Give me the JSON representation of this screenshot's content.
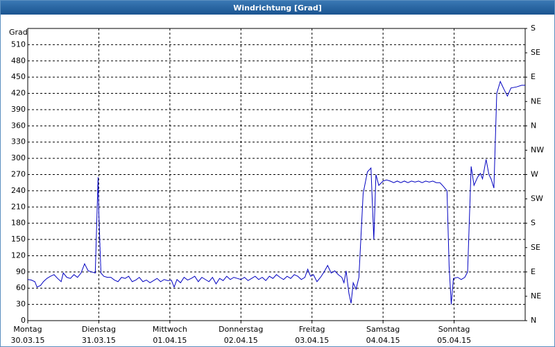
{
  "chart_data": {
    "type": "line",
    "title": "Windrichtung [Grad]",
    "y_label": "Grad",
    "xlim": [
      0,
      7
    ],
    "xticks": [
      {
        "value": 0,
        "label": "Montag",
        "sublabel": "30.03.15"
      },
      {
        "value": 1,
        "label": "Dienstag",
        "sublabel": "31.03.15"
      },
      {
        "value": 2,
        "label": "Mittwoch",
        "sublabel": "01.04.15"
      },
      {
        "value": 3,
        "label": "Donnerstag",
        "sublabel": "02.04.15"
      },
      {
        "value": 4,
        "label": "Freitag",
        "sublabel": "03.04.15"
      },
      {
        "value": 5,
        "label": "Samstag",
        "sublabel": "04.04.15"
      },
      {
        "value": 6,
        "label": "Sonntag",
        "sublabel": "05.04.15"
      }
    ],
    "ylim": [
      0,
      540
    ],
    "yticks": [
      0,
      30,
      60,
      90,
      120,
      150,
      180,
      210,
      240,
      270,
      300,
      330,
      360,
      390,
      420,
      450,
      480,
      510
    ],
    "y2lim": [
      0,
      540
    ],
    "y2ticks": [
      {
        "value": 0,
        "label": "N"
      },
      {
        "value": 45,
        "label": "NE"
      },
      {
        "value": 90,
        "label": "E"
      },
      {
        "value": 135,
        "label": "SE"
      },
      {
        "value": 180,
        "label": "S"
      },
      {
        "value": 225,
        "label": "SW"
      },
      {
        "value": 270,
        "label": "W"
      },
      {
        "value": 315,
        "label": "NW"
      },
      {
        "value": 360,
        "label": "N"
      },
      {
        "value": 405,
        "label": "NE"
      },
      {
        "value": 450,
        "label": "E"
      },
      {
        "value": 495,
        "label": "SE"
      },
      {
        "value": 540,
        "label": "S"
      }
    ],
    "grid": true,
    "x": [
      0,
      0.05,
      0.1,
      0.13,
      0.18,
      0.22,
      0.27,
      0.32,
      0.37,
      0.42,
      0.47,
      0.5,
      0.55,
      0.6,
      0.65,
      0.7,
      0.75,
      0.8,
      0.85,
      0.9,
      0.95,
      0.99,
      1.0,
      1.03,
      1.07,
      1.12,
      1.17,
      1.22,
      1.27,
      1.32,
      1.37,
      1.42,
      1.47,
      1.52,
      1.57,
      1.62,
      1.67,
      1.72,
      1.77,
      1.82,
      1.87,
      1.92,
      1.97,
      2.02,
      2.06,
      2.1,
      2.15,
      2.2,
      2.25,
      2.3,
      2.35,
      2.4,
      2.45,
      2.5,
      2.55,
      2.6,
      2.65,
      2.7,
      2.75,
      2.8,
      2.85,
      2.9,
      2.95,
      3.0,
      3.05,
      3.1,
      3.15,
      3.2,
      3.25,
      3.3,
      3.35,
      3.4,
      3.45,
      3.5,
      3.55,
      3.6,
      3.65,
      3.7,
      3.75,
      3.8,
      3.85,
      3.9,
      3.94,
      3.98,
      4.02,
      4.07,
      4.12,
      4.17,
      4.22,
      4.27,
      4.32,
      4.37,
      4.42,
      4.45,
      4.48,
      4.52,
      4.55,
      4.58,
      4.62,
      4.66,
      4.72,
      4.78,
      4.83,
      4.87,
      4.9,
      4.94,
      5.0,
      5.05,
      5.1,
      5.15,
      5.2,
      5.25,
      5.3,
      5.35,
      5.4,
      5.45,
      5.5,
      5.55,
      5.6,
      5.65,
      5.7,
      5.75,
      5.8,
      5.85,
      5.9,
      5.93,
      5.96,
      5.99,
      6.05,
      6.1,
      6.15,
      6.19,
      6.24,
      6.28,
      6.33,
      6.37,
      6.4,
      6.45,
      6.49,
      6.52,
      6.56,
      6.6,
      6.65,
      6.7,
      6.75,
      6.8,
      6.88,
      6.95,
      7.0
    ],
    "series": [
      {
        "name": "Windrichtung",
        "color": "#0000c0",
        "values": [
          76,
          75,
          72,
          62,
          65,
          72,
          78,
          82,
          85,
          78,
          72,
          88,
          80,
          78,
          85,
          80,
          88,
          105,
          92,
          90,
          88,
          265,
          200,
          88,
          82,
          80,
          80,
          75,
          72,
          80,
          78,
          82,
          72,
          75,
          80,
          72,
          75,
          70,
          74,
          78,
          72,
          76,
          74,
          75,
          62,
          76,
          70,
          80,
          75,
          78,
          82,
          72,
          80,
          76,
          72,
          80,
          68,
          78,
          74,
          82,
          76,
          80,
          78,
          76,
          80,
          74,
          78,
          82,
          76,
          80,
          74,
          82,
          78,
          85,
          80,
          76,
          82,
          78,
          85,
          82,
          76,
          80,
          95,
          82,
          85,
          72,
          80,
          90,
          102,
          88,
          92,
          85,
          80,
          70,
          92,
          50,
          32,
          70,
          58,
          80,
          235,
          275,
          282,
          150,
          270,
          250,
          258,
          260,
          258,
          255,
          258,
          255,
          258,
          255,
          258,
          256,
          258,
          255,
          258,
          256,
          258,
          255,
          255,
          248,
          240,
          100,
          30,
          78,
          80,
          76,
          80,
          90,
          285,
          250,
          265,
          272,
          262,
          298,
          270,
          262,
          245,
          420,
          442,
          428,
          415,
          430,
          432,
          435,
          435
        ]
      }
    ]
  }
}
